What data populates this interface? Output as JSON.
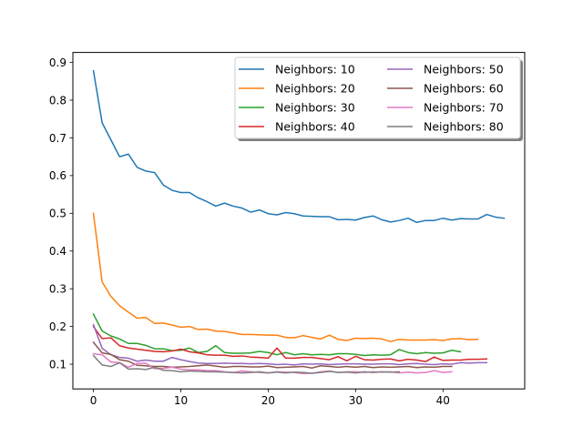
{
  "chart_data": {
    "type": "line",
    "title": "",
    "xlabel": "",
    "ylabel": "",
    "xlim": [
      -2.35,
      49.35
    ],
    "ylim": [
      0.0345,
      0.9265
    ],
    "xticks": [
      0,
      10,
      20,
      30,
      40
    ],
    "xtick_labels": [
      "0",
      "10",
      "20",
      "30",
      "40"
    ],
    "yticks": [
      0.1,
      0.2,
      0.3,
      0.4,
      0.5,
      0.6,
      0.7,
      0.8,
      0.9
    ],
    "ytick_labels": [
      "0.1",
      "0.2",
      "0.3",
      "0.4",
      "0.5",
      "0.6",
      "0.7",
      "0.8",
      "0.9"
    ],
    "grid": false,
    "legend": {
      "placement": "top-right",
      "columns": 2,
      "shadow": true
    },
    "series": [
      {
        "name": "Neighbors: 10",
        "color": "#1f77b4",
        "values": [
          0.878,
          0.74,
          0.695,
          0.65,
          0.657,
          0.622,
          0.612,
          0.608,
          0.575,
          0.561,
          0.555,
          0.555,
          0.541,
          0.531,
          0.519,
          0.527,
          0.519,
          0.514,
          0.503,
          0.509,
          0.499,
          0.496,
          0.502,
          0.499,
          0.493,
          0.492,
          0.491,
          0.491,
          0.483,
          0.484,
          0.482,
          0.489,
          0.493,
          0.483,
          0.477,
          0.481,
          0.487,
          0.476,
          0.481,
          0.481,
          0.487,
          0.482,
          0.486,
          0.485,
          0.485,
          0.497,
          0.49,
          0.487
        ]
      },
      {
        "name": "Neighbors: 20",
        "color": "#ff7f0e",
        "values": [
          0.5,
          0.318,
          0.28,
          0.255,
          0.238,
          0.222,
          0.224,
          0.208,
          0.209,
          0.204,
          0.198,
          0.2,
          0.192,
          0.193,
          0.188,
          0.187,
          0.183,
          0.179,
          0.179,
          0.178,
          0.177,
          0.177,
          0.171,
          0.17,
          0.176,
          0.171,
          0.167,
          0.177,
          0.166,
          0.163,
          0.169,
          0.168,
          0.169,
          0.167,
          0.16,
          0.166,
          0.164,
          0.164,
          0.164,
          0.165,
          0.163,
          0.167,
          0.168,
          0.165,
          0.166
        ]
      },
      {
        "name": "Neighbors: 30",
        "color": "#2ca02c",
        "values": [
          0.233,
          0.188,
          0.175,
          0.167,
          0.155,
          0.155,
          0.15,
          0.141,
          0.141,
          0.136,
          0.137,
          0.143,
          0.131,
          0.134,
          0.149,
          0.131,
          0.129,
          0.129,
          0.13,
          0.134,
          0.131,
          0.125,
          0.131,
          0.125,
          0.128,
          0.125,
          0.126,
          0.125,
          0.128,
          0.128,
          0.126,
          0.123,
          0.125,
          0.124,
          0.125,
          0.139,
          0.131,
          0.128,
          0.131,
          0.129,
          0.13,
          0.137,
          0.133
        ]
      },
      {
        "name": "Neighbors: 40",
        "color": "#d62728",
        "values": [
          0.2,
          0.168,
          0.17,
          0.149,
          0.143,
          0.14,
          0.137,
          0.134,
          0.133,
          0.135,
          0.14,
          0.133,
          0.13,
          0.125,
          0.124,
          0.124,
          0.121,
          0.122,
          0.119,
          0.118,
          0.116,
          0.143,
          0.116,
          0.116,
          0.118,
          0.118,
          0.115,
          0.112,
          0.12,
          0.109,
          0.121,
          0.112,
          0.111,
          0.113,
          0.114,
          0.109,
          0.113,
          0.111,
          0.107,
          0.119,
          0.11,
          0.111,
          0.111,
          0.113,
          0.113,
          0.114
        ]
      },
      {
        "name": "Neighbors: 50",
        "color": "#9467bd",
        "values": [
          0.205,
          0.142,
          0.125,
          0.118,
          0.116,
          0.108,
          0.111,
          0.108,
          0.108,
          0.118,
          0.112,
          0.107,
          0.103,
          0.102,
          0.102,
          0.103,
          0.102,
          0.102,
          0.101,
          0.102,
          0.101,
          0.099,
          0.1,
          0.098,
          0.101,
          0.1,
          0.101,
          0.099,
          0.1,
          0.101,
          0.101,
          0.1,
          0.1,
          0.101,
          0.101,
          0.099,
          0.101,
          0.102,
          0.1,
          0.099,
          0.101,
          0.1,
          0.104,
          0.103,
          0.104,
          0.104
        ]
      },
      {
        "name": "Neighbors: 60",
        "color": "#8c564b",
        "values": [
          0.158,
          0.13,
          0.126,
          0.112,
          0.108,
          0.097,
          0.096,
          0.094,
          0.094,
          0.092,
          0.093,
          0.094,
          0.096,
          0.098,
          0.095,
          0.092,
          0.094,
          0.094,
          0.093,
          0.093,
          0.095,
          0.091,
          0.092,
          0.093,
          0.094,
          0.09,
          0.096,
          0.094,
          0.092,
          0.094,
          0.092,
          0.094,
          0.091,
          0.093,
          0.092,
          0.093,
          0.094,
          0.091,
          0.093,
          0.092,
          0.094,
          0.094
        ]
      },
      {
        "name": "Neighbors: 70",
        "color": "#e377c2",
        "values": [
          0.128,
          0.125,
          0.106,
          0.104,
          0.092,
          0.102,
          0.103,
          0.088,
          0.089,
          0.092,
          0.087,
          0.085,
          0.085,
          0.083,
          0.083,
          0.08,
          0.078,
          0.082,
          0.08,
          0.078,
          0.077,
          0.08,
          0.079,
          0.078,
          0.075,
          0.076,
          0.08,
          0.082,
          0.078,
          0.08,
          0.08,
          0.078,
          0.08,
          0.079,
          0.08,
          0.077,
          0.079,
          0.077,
          0.078,
          0.083,
          0.078,
          0.08
        ]
      },
      {
        "name": "Neighbors: 80",
        "color": "#7f7f7f",
        "values": [
          0.123,
          0.098,
          0.094,
          0.104,
          0.087,
          0.088,
          0.086,
          0.092,
          0.084,
          0.083,
          0.08,
          0.082,
          0.081,
          0.08,
          0.08,
          0.079,
          0.078,
          0.077,
          0.078,
          0.08,
          0.077,
          0.079,
          0.077,
          0.079,
          0.078,
          0.076,
          0.078,
          0.081,
          0.078,
          0.079,
          0.077,
          0.08,
          0.078,
          0.08,
          0.079,
          0.08
        ]
      }
    ]
  }
}
